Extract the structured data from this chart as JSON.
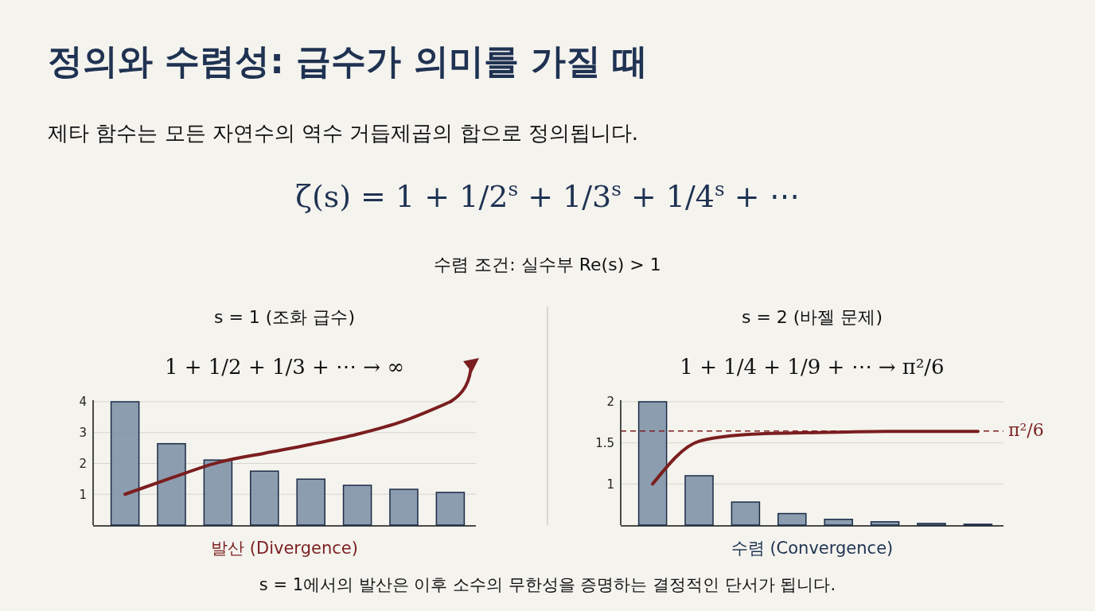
{
  "chart_data": [
    {
      "type": "other",
      "title": "정의와 수렴성: 급수가 의미를 가질 때",
      "subtitle": "제타 함수는 모든 자연수의 역수 거듭제곱의 합으로 정의됩니다.",
      "annotations": [
        "ζ(s) = 1 + 1/2$^{s}$ + 1/3$^{s}$ + 1/4$^{s}$ + ⋯",
        "수렴 조건: 실수부 Re(s) > 1",
        "s = 1에서의 발산은 이후 소수의 무한성을 증명하는 결정적인 단서가 됩니다."
      ]
    },
    {
      "type": "bar",
      "title": "s = 1 (조화 급수)",
      "subtitle": "1 + 1/2 + 1/3 + ⋯ → ∞",
      "xlabel": "발산 (Divergence)",
      "categories": [
        null,
        null,
        null,
        null,
        null,
        null,
        null,
        null
      ],
      "series": [
        {
          "type": "bar",
          "color": "#8193a8",
          "values": [
            4,
            2.64,
            2.11,
            1.75,
            1.49,
            1.29,
            1.16,
            1.06
          ]
        },
        {
          "type": "line",
          "color": "#7b1e1e",
          "values": [
            1,
            1.53,
            2.03,
            2.33,
            2.62,
            2.95,
            3.38,
            4
          ]
        }
      ],
      "ylim": [
        0,
        4
      ],
      "yticks": [
        1,
        2,
        3,
        4
      ],
      "grid": "y"
    },
    {
      "type": "bar",
      "title": "s = 2 (바젤 문제)",
      "subtitle": "1 + 1/4 + 1/9 + ⋯ → π²/6",
      "xlabel": "수렴 (Convergence)",
      "categories": [
        null,
        null,
        null,
        null,
        null,
        null,
        null,
        null
      ],
      "series": [
        {
          "type": "bar",
          "color": "#8193a8",
          "values": [
            2,
            1.1,
            0.78,
            0.64,
            0.57,
            0.54,
            0.52,
            0.51
          ]
        },
        {
          "type": "line",
          "color": "#7b1e1e",
          "values": [
            1,
            1.52,
            1.6,
            1.62,
            1.63,
            1.64,
            1.64,
            1.64
          ]
        }
      ],
      "ylim": [
        0.5,
        2
      ],
      "yticks": [
        1,
        1.5,
        2
      ],
      "grid": "y",
      "ref_lines": [
        {
          "axis": "y",
          "value": 1.645,
          "label": "π²/6",
          "color": "#7b1e1e",
          "line_style": "dashed"
        }
      ]
    }
  ]
}
